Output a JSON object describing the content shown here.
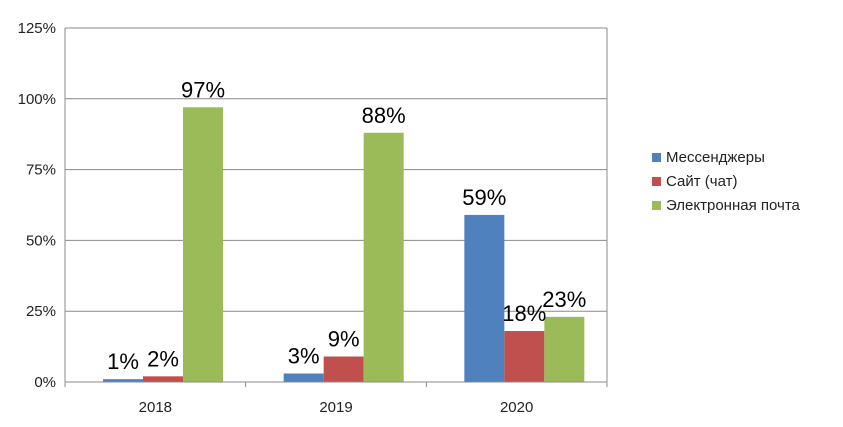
{
  "chart_data": {
    "type": "bar",
    "categories": [
      "2018",
      "2019",
      "2020"
    ],
    "series": [
      {
        "name": "Мессенджеры",
        "color": "#4f81bd",
        "values": [
          1,
          3,
          59
        ],
        "labels": [
          "1%",
          "3%",
          "59%"
        ]
      },
      {
        "name": "Сайт (чат)",
        "color": "#c0504d",
        "values": [
          2,
          9,
          18
        ],
        "labels": [
          "2%",
          "9%",
          "18%"
        ]
      },
      {
        "name": "Электронная почта",
        "color": "#9bbb59",
        "values": [
          97,
          88,
          23
        ],
        "labels": [
          "97%",
          "88%",
          "23%"
        ]
      }
    ],
    "ylim": [
      0,
      125
    ],
    "yticks": [
      {
        "value": 0,
        "label": "0%"
      },
      {
        "value": 25,
        "label": "25%"
      },
      {
        "value": 50,
        "label": "50%"
      },
      {
        "value": 75,
        "label": "75%"
      },
      {
        "value": 100,
        "label": "100%"
      },
      {
        "value": 125,
        "label": "125%"
      }
    ],
    "grid": true,
    "legend": "right"
  }
}
